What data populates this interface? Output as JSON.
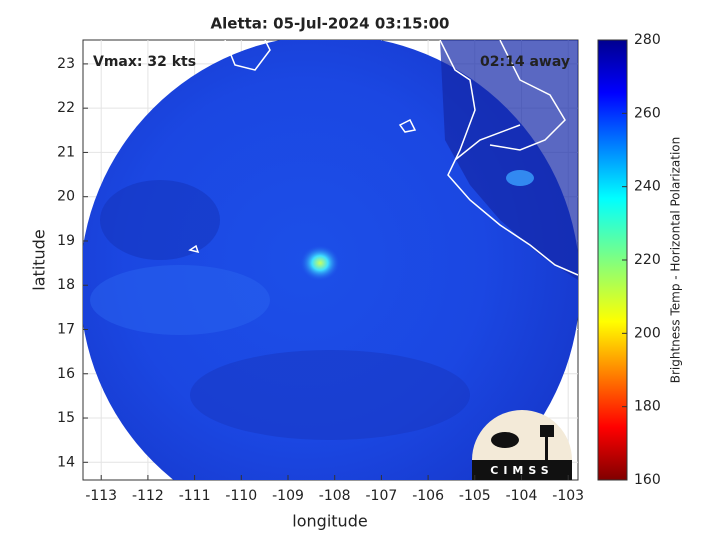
{
  "map": {
    "title": "Aletta: 05-Jul-2024 03:15:00",
    "vmax_label": "Vmax: 32 kts",
    "time_label": "02:14 away",
    "x_label": "longitude",
    "y_label": "latitude",
    "xlim": [
      -113.39,
      -102.79
    ],
    "ylim": [
      13.6,
      23.54
    ],
    "xticks": [
      -113,
      -112,
      -111,
      -110,
      -109,
      -108,
      -107,
      -106,
      -105,
      -104,
      -103
    ],
    "yticks": [
      14,
      15,
      16,
      17,
      18,
      19,
      20,
      21,
      22,
      23
    ],
    "grid": true,
    "colorbar": {
      "label": "Brightness Temp - Horizontal Polarization",
      "lim": [
        160,
        280
      ],
      "ticks": [
        160,
        180,
        200,
        220,
        240,
        260,
        280
      ]
    },
    "logo": "CIMSS"
  }
}
